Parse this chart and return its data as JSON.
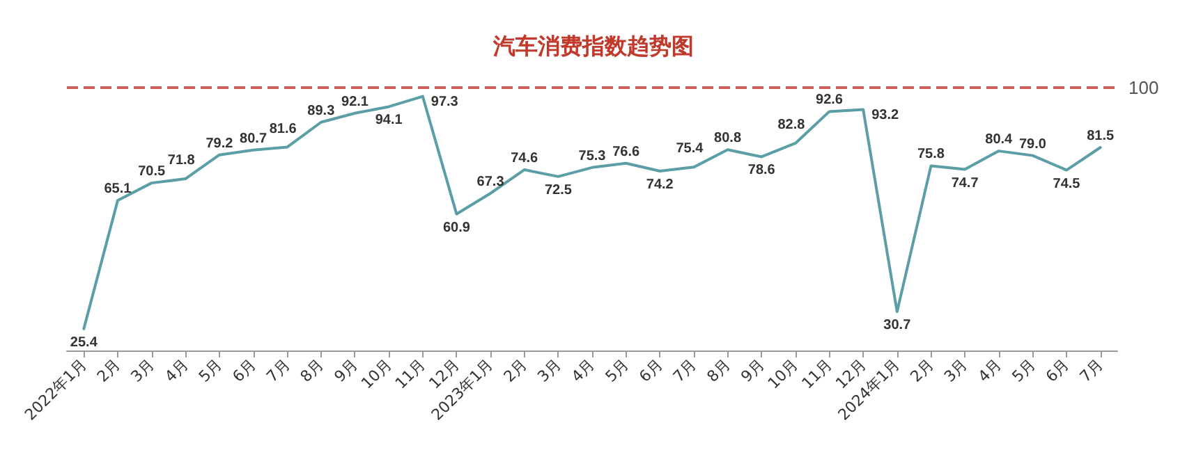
{
  "chart_data": {
    "type": "line",
    "title": "汽车消费指数趋势图",
    "categories": [
      "2022年1月",
      "2月",
      "3月",
      "4月",
      "5月",
      "6月",
      "7月",
      "8月",
      "9月",
      "10月",
      "11月",
      "12月",
      "2023年1月",
      "2月",
      "3月",
      "4月",
      "5月",
      "6月",
      "7月",
      "8月",
      "9月",
      "10月",
      "11月",
      "12月",
      "2024年1月",
      "2月",
      "3月",
      "4月",
      "5月",
      "6月",
      "7月"
    ],
    "series": [
      {
        "color": "#5b9ea5",
        "values": [
          25.4,
          65.1,
          70.5,
          71.8,
          79.2,
          80.7,
          81.6,
          89.3,
          92.1,
          94.1,
          97.3,
          60.9,
          67.3,
          74.6,
          72.5,
          75.3,
          76.6,
          74.2,
          75.4,
          80.8,
          78.6,
          82.8,
          92.6,
          93.2,
          30.7,
          75.8,
          74.7,
          80.4,
          79.0,
          74.5,
          81.5
        ],
        "value_labels": [
          "25.4",
          "65.1",
          "70.5",
          "71.8",
          "79.2",
          "80.7",
          "81.6",
          "89.3",
          "92.1",
          "94.1",
          "97.3",
          "60.9",
          "67.3",
          "74.6",
          "72.5",
          "75.3",
          "76.6",
          "74.2",
          "75.4",
          "80.8",
          "78.6",
          "82.8",
          "92.6",
          "93.2",
          "30.7",
          "75.8",
          "74.7",
          "80.4",
          "79.0",
          "74.5",
          "81.5"
        ]
      }
    ],
    "ref_lines": [
      {
        "axis": "y",
        "value": 100,
        "label": "100",
        "color": "#c9605a",
        "line_style": "dashed"
      }
    ],
    "grid": false,
    "marker": "none",
    "line_style": "solid",
    "tick_labels": "x"
  }
}
